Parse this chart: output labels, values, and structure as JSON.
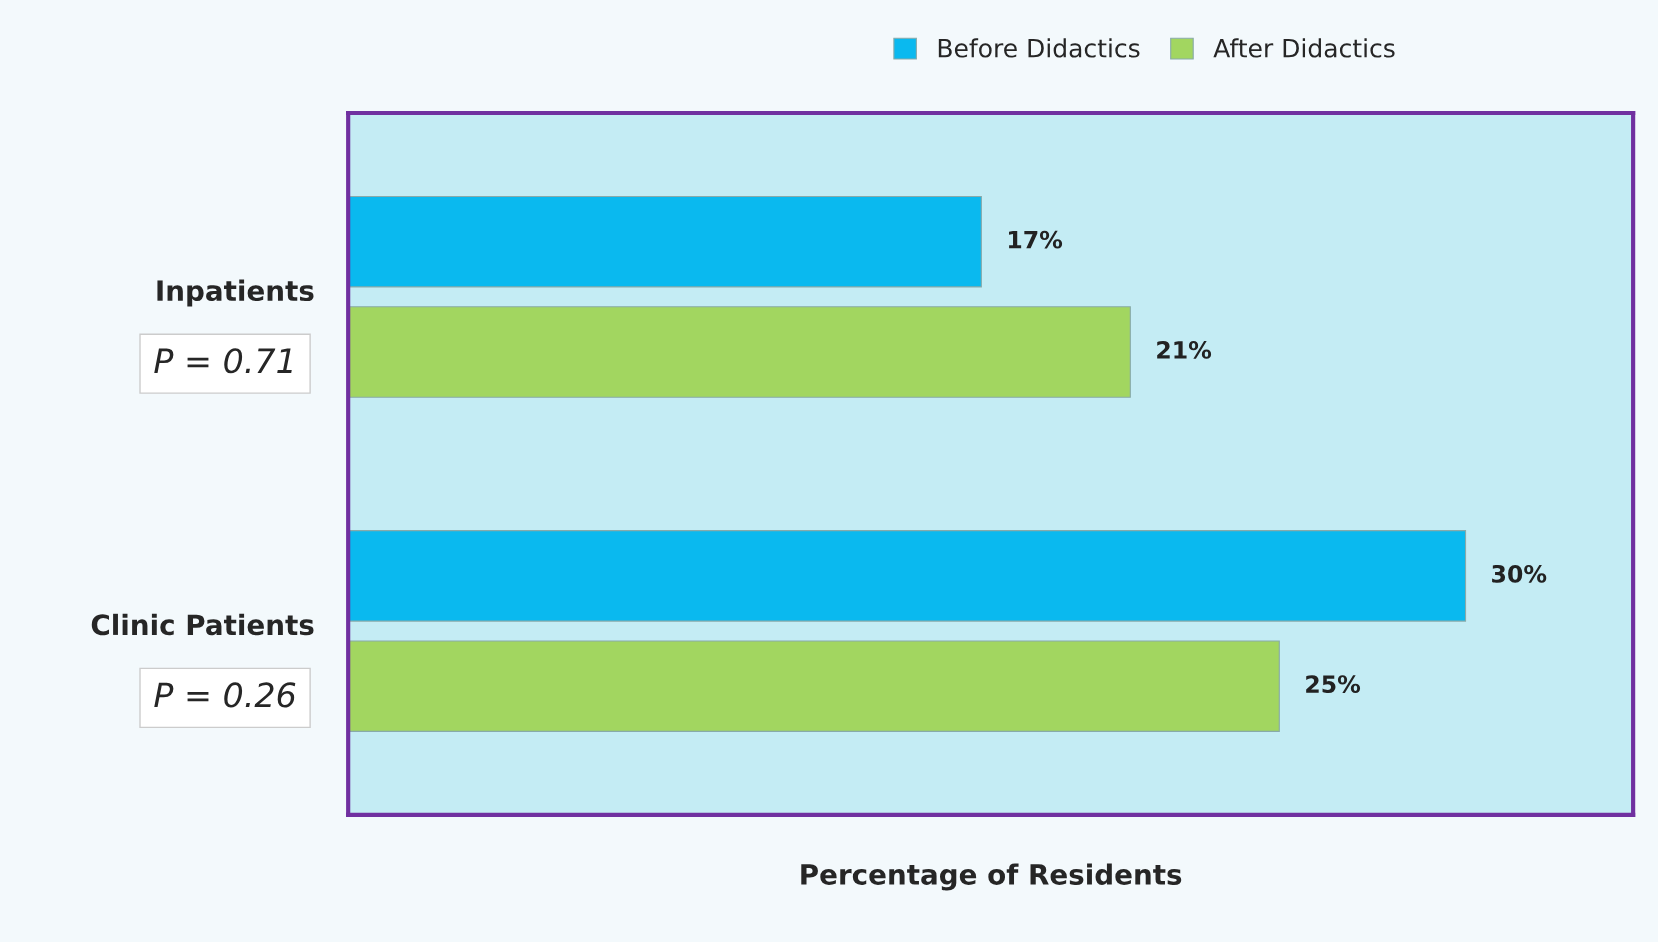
{
  "chart_data": {
    "type": "bar",
    "orientation": "horizontal",
    "categories": [
      "Inpatients",
      "Clinic Patients"
    ],
    "series": [
      {
        "name": "Before Didactics",
        "color": "#0ab9ef",
        "values": [
          17,
          30
        ],
        "value_labels": [
          "17%",
          "30%"
        ]
      },
      {
        "name": "After Didactics",
        "color": "#a2d660",
        "values": [
          21,
          25
        ],
        "value_labels": [
          "21%",
          "25%"
        ]
      }
    ],
    "xlabel": "Percentage of Residents",
    "annotations": [
      "P = 0.71",
      "P = 0.26"
    ],
    "legend": "top",
    "tick_labels": "y",
    "grid": false
  }
}
